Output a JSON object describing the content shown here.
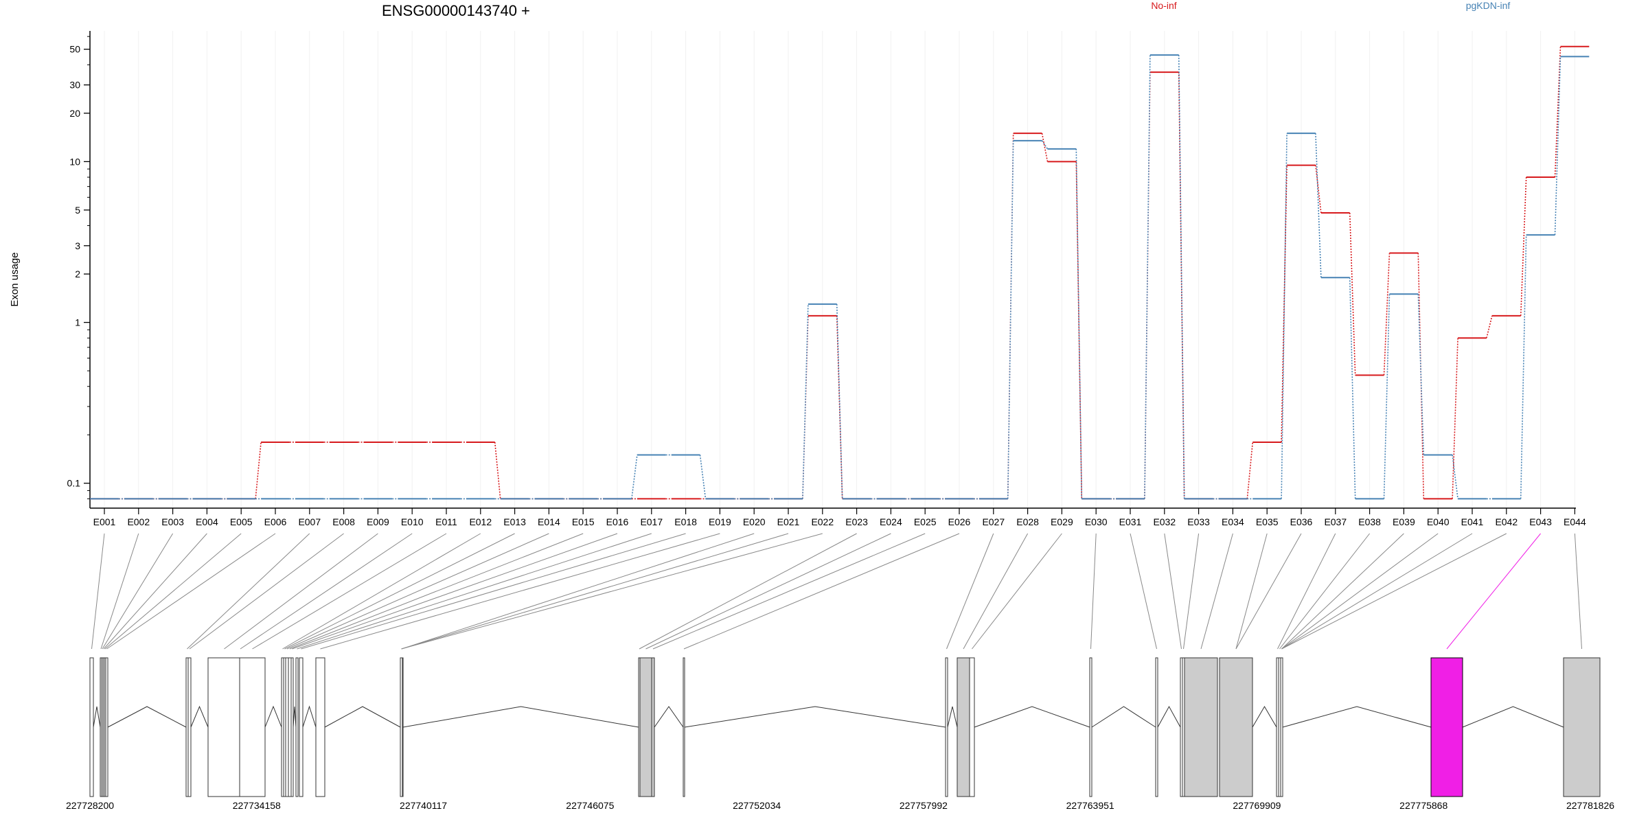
{
  "chart_data": {
    "type": "line",
    "title": "ENSG00000143740 +",
    "xlabel": "",
    "ylabel": "Exon usage",
    "y_scale": "log",
    "ylim": [
      0.07,
      65
    ],
    "y_ticks": [
      0.1,
      1,
      2,
      3,
      5,
      10,
      20,
      30,
      50
    ],
    "grid": "vertical-light",
    "legend_position": "top-right",
    "categories": [
      "E001",
      "E002",
      "E003",
      "E004",
      "E005",
      "E006",
      "E007",
      "E008",
      "E009",
      "E010",
      "E011",
      "E012",
      "E013",
      "E014",
      "E015",
      "E016",
      "E017",
      "E018",
      "E019",
      "E020",
      "E021",
      "E022",
      "E023",
      "E024",
      "E025",
      "E026",
      "E027",
      "E028",
      "E029",
      "E030",
      "E031",
      "E032",
      "E033",
      "E034",
      "E035",
      "E036",
      "E037",
      "E038",
      "E039",
      "E040",
      "E041",
      "E042",
      "E043",
      "E044"
    ],
    "series": [
      {
        "name": "No-inf",
        "color": "#d7191c",
        "values": [
          0.08,
          0.08,
          0.08,
          0.08,
          0.08,
          0.18,
          0.18,
          0.18,
          0.18,
          0.18,
          0.18,
          0.18,
          0.08,
          0.08,
          0.08,
          0.08,
          0.08,
          0.08,
          0.08,
          0.08,
          0.08,
          1.1,
          0.08,
          0.08,
          0.08,
          0.08,
          0.08,
          15,
          10,
          0.08,
          0.08,
          36,
          0.08,
          0.08,
          0.18,
          9.5,
          4.8,
          0.47,
          2.7,
          0.08,
          0.8,
          1.1,
          8,
          52
        ]
      },
      {
        "name": "pgKDN-inf",
        "color": "#4682b4",
        "values": [
          0.08,
          0.08,
          0.08,
          0.08,
          0.08,
          0.08,
          0.08,
          0.08,
          0.08,
          0.08,
          0.08,
          0.08,
          0.08,
          0.08,
          0.08,
          0.08,
          0.15,
          0.15,
          0.08,
          0.08,
          0.08,
          1.3,
          0.08,
          0.08,
          0.08,
          0.08,
          0.08,
          13.5,
          12,
          0.08,
          0.08,
          46,
          0.08,
          0.08,
          0.08,
          15,
          1.9,
          0.08,
          1.5,
          0.15,
          0.08,
          0.08,
          3.5,
          45
        ]
      }
    ],
    "genome": {
      "coordinate_labels": [
        "227728200",
        "227734158",
        "227740117",
        "227746075",
        "227752034",
        "227757992",
        "227763951",
        "227769909",
        "227775868",
        "227781826"
      ],
      "exon_fill": {
        "E001": "#ffffff",
        "E002": "#ffffff",
        "E003": "#ffffff",
        "E004": "#ffffff",
        "E005": "#ffffff",
        "E006": "#ffffff",
        "E007": "#ffffff",
        "E008": "#ffffff",
        "E009": "#ffffff",
        "E010": "#ffffff",
        "E011": "#ffffff",
        "E012": "#ffffff",
        "E013": "#ffffff",
        "E014": "#ffffff",
        "E015": "#ffffff",
        "E016": "#ffffff",
        "E017": "#ffffff",
        "E018": "#ffffff",
        "E019": "#ffffff",
        "E020": "#ffffff",
        "E021": "#ffffff",
        "E022": "#ffffff",
        "E023": "#ffffff",
        "E024": "#cccccc",
        "E025": "#cccccc",
        "E026": "#ffffff",
        "E027": "#ffffff",
        "E028": "#cccccc",
        "E029": "#ffffff",
        "E030": "#ffffff",
        "E031": "#ffffff",
        "E032": "#ffffff",
        "E033": "#ffffff",
        "E034": "#cccccc",
        "E035": "#cccccc",
        "E036": "#cccccc",
        "E037": "#ffffff",
        "E038": "#ffffff",
        "E039": "#ffffff",
        "E040": "#cccccc",
        "E041": "#cccccc",
        "E042": "#ffffff",
        "E043": "#f01fe6",
        "E044": "#cccccc"
      },
      "highlight_exon": "E043",
      "highlight_color": "#f01fe6"
    }
  }
}
